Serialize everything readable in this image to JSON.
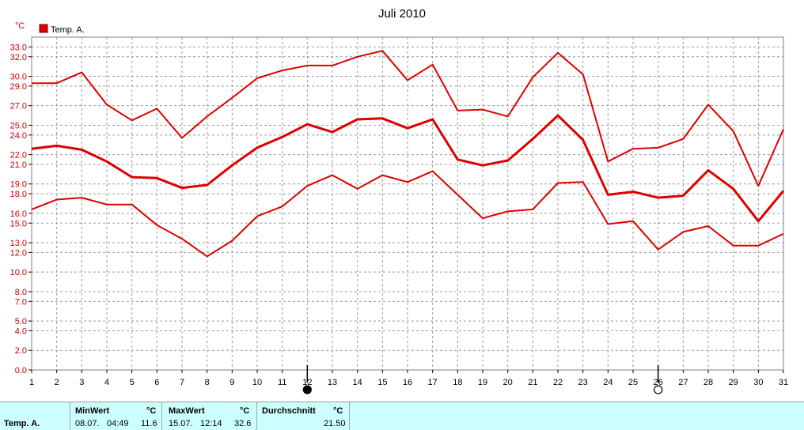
{
  "chart_data": {
    "type": "line",
    "title": "Juli 2010",
    "ylabel": "°C",
    "ylim": [
      0,
      34
    ],
    "y_ticks": [
      "0.0",
      "2.0",
      "4.0",
      "5.0",
      "7.0",
      "8.0",
      "10.0",
      "12.0",
      "13.0",
      "15.0",
      "16.0",
      "18.0",
      "19.0",
      "21.0",
      "22.0",
      "24.0",
      "25.0",
      "27.0",
      "29.0",
      "30.0",
      "32.0",
      "33.0"
    ],
    "x": [
      1,
      2,
      3,
      4,
      5,
      6,
      7,
      8,
      9,
      10,
      11,
      12,
      13,
      14,
      15,
      16,
      17,
      18,
      19,
      20,
      21,
      22,
      23,
      24,
      25,
      26,
      27,
      28,
      29,
      30,
      31
    ],
    "legend": [
      "Temp. A."
    ],
    "grid": true,
    "series": [
      {
        "name": "Temp. A. max",
        "values": [
          29.3,
          29.3,
          30.4,
          27.1,
          25.5,
          26.7,
          23.7,
          25.9,
          27.8,
          29.8,
          30.6,
          31.1,
          31.1,
          32.0,
          32.6,
          29.6,
          31.2,
          26.5,
          26.6,
          25.9,
          29.9,
          32.4,
          30.2,
          21.3,
          22.6,
          22.7,
          23.6,
          27.1,
          24.4,
          18.8,
          24.6
        ]
      },
      {
        "name": "Temp. A. mean",
        "values": [
          22.6,
          22.9,
          22.5,
          21.3,
          19.7,
          19.6,
          18.6,
          18.9,
          20.9,
          22.7,
          23.8,
          25.1,
          24.3,
          25.6,
          25.7,
          24.7,
          25.6,
          21.5,
          20.9,
          21.4,
          23.6,
          26.0,
          23.5,
          17.9,
          18.2,
          17.6,
          17.8,
          20.4,
          18.5,
          15.2,
          18.3
        ]
      },
      {
        "name": "Temp. A. min",
        "values": [
          16.4,
          17.4,
          17.6,
          16.9,
          16.9,
          14.8,
          13.4,
          11.6,
          13.2,
          15.7,
          16.7,
          18.8,
          19.9,
          18.5,
          19.9,
          19.2,
          20.3,
          17.9,
          15.5,
          16.2,
          16.4,
          19.1,
          19.2,
          14.9,
          15.2,
          12.3,
          14.1,
          14.7,
          12.7,
          12.7,
          13.9
        ]
      }
    ],
    "moon_markers": [
      {
        "day": 12,
        "phase": "new"
      },
      {
        "day": 26,
        "phase": "full"
      }
    ],
    "colors": {
      "line": "#dd0000",
      "grid": "#999999",
      "tick_label": "#cc0000"
    }
  },
  "stats": {
    "row_label": "Temp. A.",
    "min": {
      "header": "MinWert",
      "unit": "°C",
      "date": "08.07.",
      "time": "04:49",
      "value": "11.6"
    },
    "max": {
      "header": "MaxWert",
      "unit": "°C",
      "date": "15.07.",
      "time": "12:14",
      "value": "32.6"
    },
    "avg": {
      "header": "Durchschnitt",
      "unit": "°C",
      "value": "21.50"
    }
  }
}
